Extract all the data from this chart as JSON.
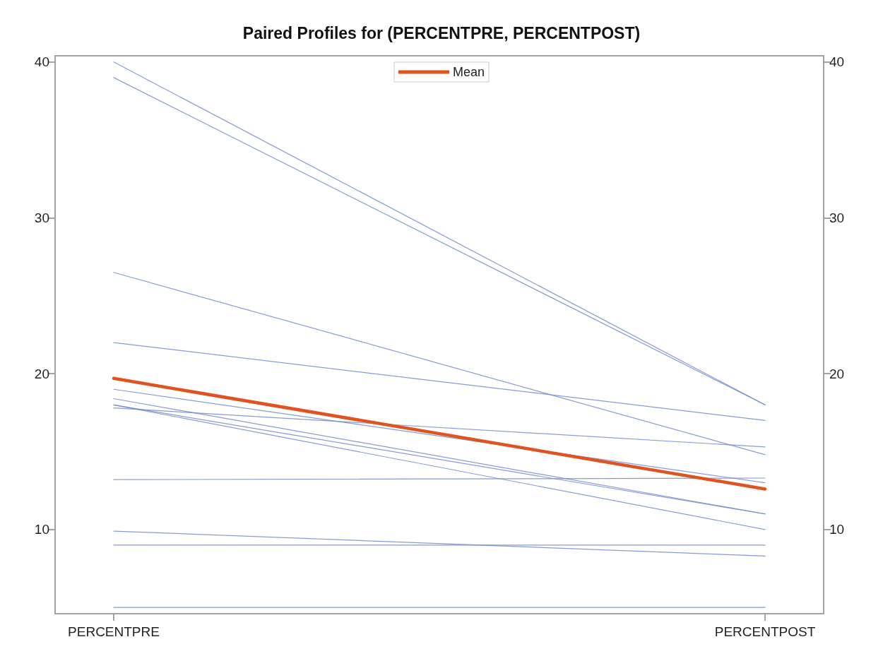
{
  "chart_data": {
    "type": "line",
    "title": "Paired Profiles for (PERCENTPRE, PERCENTPOST)",
    "categories": [
      "PERCENTPRE",
      "PERCENTPOST"
    ],
    "series": [
      {
        "color": "#7189cc",
        "values": [
          40,
          18
        ]
      },
      {
        "color": "#7189cc",
        "values": [
          39,
          18
        ]
      },
      {
        "color": "#7189cc",
        "values": [
          26.5,
          14.8
        ]
      },
      {
        "color": "#7189cc",
        "values": [
          22,
          17
        ]
      },
      {
        "color": "#7189cc",
        "values": [
          19,
          13
        ]
      },
      {
        "color": "#7189cc",
        "values": [
          18.4,
          11
        ]
      },
      {
        "color": "#7189cc",
        "values": [
          18,
          11
        ]
      },
      {
        "color": "#7189cc",
        "values": [
          18,
          10
        ]
      },
      {
        "color": "#7189cc",
        "values": [
          17.8,
          15.3
        ]
      },
      {
        "color": "#7189cc",
        "values": [
          13.2,
          13.3
        ]
      },
      {
        "color": "#7189cc",
        "values": [
          9.9,
          8.3
        ]
      },
      {
        "color": "#7189cc",
        "values": [
          9,
          9
        ]
      },
      {
        "color": "#7189cc",
        "values": [
          5,
          5
        ]
      },
      {
        "name": "Mean",
        "color": "#e0521f",
        "values": [
          19.7,
          12.6
        ]
      }
    ],
    "ylim": [
      4.6,
      40.4
    ],
    "yticks": [
      10,
      20,
      30,
      40
    ],
    "y2lim": [
      4.6,
      40.4
    ],
    "y2ticks": [
      10,
      20,
      30,
      40
    ],
    "legend": "top",
    "marker": "none",
    "line_style": "solid"
  }
}
